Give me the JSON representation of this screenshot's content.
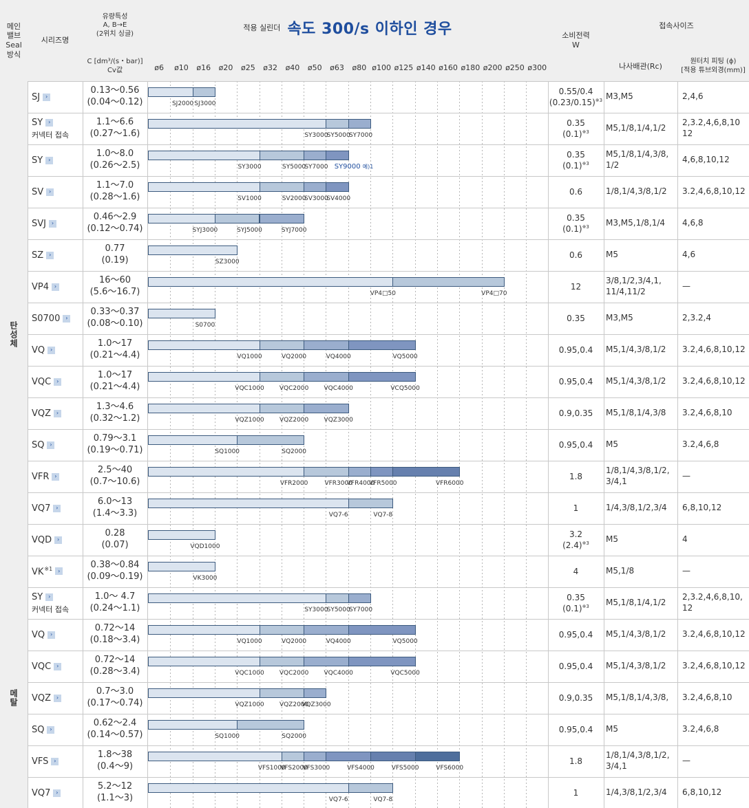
{
  "header": {
    "main_valve_seal": "메인\n밸브\nSeal\n방식",
    "series_name": "시리즈명",
    "flow_characteristic": "유량특성\nA, B→E\n(2위치 싱글)",
    "flow_unit": "C [dm³/(s・bar)]\nCv값",
    "cylinder_prefix": "적용 실린더",
    "cylinder_title": "속도 300/s 이하인 경우",
    "power": "소비전력\nW",
    "connection_size": "접속사이즈",
    "pipe_thread": "나사배관(Rc)",
    "tube_fitting": "원터치 피팅 (ϕ)\n[적용 튜브외경(mm)]"
  },
  "bore_ticks": [
    "ø6",
    "ø10",
    "ø16",
    "ø20",
    "ø25",
    "ø32",
    "ø40",
    "ø50",
    "ø63",
    "ø80",
    "ø100",
    "ø125",
    "ø140",
    "ø160",
    "ø180",
    "ø200",
    "ø250",
    "ø300"
  ],
  "sections": [
    {
      "label": "탄성체",
      "rows": 16
    },
    {
      "label": "메탈",
      "rows": 7
    }
  ],
  "rows": [
    {
      "series": "SJ",
      "note": "",
      "sub": "",
      "flow_c": "0.13〜0.56",
      "flow_cv": "(0.04〜0.12)",
      "power": "0.55/0.4",
      "power_sub": "(0.23/0.15)",
      "power_mark": "※3",
      "pipe": "M3,M5",
      "tube": "2,4,6",
      "segments": [
        {
          "label": "SJ2000",
          "end": 2
        },
        {
          "label": "SJ3000",
          "end": 3
        }
      ]
    },
    {
      "series": "SY",
      "note": "",
      "sub": "커넥터 접속",
      "flow_c": "1.1〜6.6",
      "flow_cv": "(0.27〜1.6)",
      "power": "0.35",
      "power_sub": "(0.1)",
      "power_mark": "※3",
      "pipe": "M5,1/8,1/4,1/2",
      "tube": "2,3.2,4,6,8,10\n12",
      "segments": [
        {
          "label": "SY3000",
          "end": 8
        },
        {
          "label": "SY5000",
          "end": 9
        },
        {
          "label": "SY7000",
          "end": 10
        }
      ]
    },
    {
      "series": "SY",
      "note": "",
      "sub": "",
      "flow_c": "1.0〜8.0",
      "flow_cv": "(0.26〜2.5)",
      "power": "0.35",
      "power_sub": "(0.1)",
      "power_mark": "※3",
      "pipe": "M5,1/8,1/4,3/8,\n1/2",
      "tube": "4,6,8,10,12",
      "segments": [
        {
          "label": "SY3000",
          "end": 5
        },
        {
          "label": "SY5000",
          "end": 7
        },
        {
          "label": "SY7000",
          "end": 8
        },
        {
          "label": "",
          "end": 9
        }
      ],
      "extra": "SY9000",
      "extra_note": "예)1"
    },
    {
      "series": "SV",
      "note": "",
      "sub": "",
      "flow_c": "1.1〜7.0",
      "flow_cv": "(0.28〜1.6)",
      "power": "0.6",
      "power_sub": "",
      "power_mark": "",
      "pipe": "1/8,1/4,3/8,1/2",
      "tube": "3.2,4,6,8,10,12",
      "segments": [
        {
          "label": "SV1000",
          "end": 5
        },
        {
          "label": "SV2000",
          "end": 7
        },
        {
          "label": "SV3000",
          "end": 8
        },
        {
          "label": "SV4000",
          "end": 9
        }
      ]
    },
    {
      "series": "SVJ",
      "note": "",
      "sub": "",
      "flow_c": "0.46〜2.9",
      "flow_cv": "(0.12〜0.74)",
      "power": "0.35",
      "power_sub": "(0.1)",
      "power_mark": "※3",
      "pipe": "M3,M5,1/8,1/4",
      "tube": "4,6,8",
      "segments": [
        {
          "label": "SYJ3000",
          "end": 3
        },
        {
          "label": "SYJ5000",
          "end": 5
        },
        {
          "label": "SYJ7000",
          "end": 7
        }
      ]
    },
    {
      "series": "SZ",
      "note": "",
      "sub": "",
      "flow_c": "0.77",
      "flow_cv": "(0.19)",
      "power": "0.6",
      "power_sub": "",
      "power_mark": "",
      "pipe": "M5",
      "tube": "4,6",
      "segments": [
        {
          "label": "SZ3000",
          "end": 4
        }
      ]
    },
    {
      "series": "VP4",
      "note": "",
      "sub": "",
      "flow_c": "16〜60",
      "flow_cv": "(5.6〜16.7)",
      "power": "12",
      "power_sub": "",
      "power_mark": "",
      "pipe": "3/8,1/2,3/4,1,\n11/4,11/2",
      "tube": "—",
      "segments": [
        {
          "label": "VP4□50",
          "end": 11
        },
        {
          "label": "VP4□70",
          "end": 16
        }
      ]
    },
    {
      "series": "S0700",
      "note": "",
      "sub": "",
      "flow_c": "0.33〜0.37",
      "flow_cv": "(0.08〜0.10)",
      "power": "0.35",
      "power_sub": "",
      "power_mark": "",
      "pipe": "M3,M5",
      "tube": "2,3.2,4",
      "segments": [
        {
          "label": "S0700",
          "end": 3
        }
      ]
    },
    {
      "series": "VQ",
      "note": "",
      "sub": "",
      "flow_c": "1.0〜17",
      "flow_cv": "(0.21〜4.4)",
      "power": "0.95,0.4",
      "power_sub": "",
      "power_mark": "",
      "pipe": "M5,1/4,3/8,1/2",
      "tube": "3.2,4,6,8,10,12",
      "segments": [
        {
          "label": "VQ1000",
          "end": 5
        },
        {
          "label": "VQ2000",
          "end": 7
        },
        {
          "label": "VQ4000",
          "end": 9
        },
        {
          "label": "VQ5000",
          "end": 12
        }
      ]
    },
    {
      "series": "VQC",
      "note": "",
      "sub": "",
      "flow_c": "1.0〜17",
      "flow_cv": "(0.21〜4.4)",
      "power": "0.95,0.4",
      "power_sub": "",
      "power_mark": "",
      "pipe": "M5,1/4,3/8,1/2",
      "tube": "3.2,4,6,8,10,12",
      "segments": [
        {
          "label": "VQC1000",
          "end": 5
        },
        {
          "label": "VQC2000",
          "end": 7
        },
        {
          "label": "VQC4000",
          "end": 9
        },
        {
          "label": "VCQ5000",
          "end": 12
        }
      ]
    },
    {
      "series": "VQZ",
      "note": "",
      "sub": "",
      "flow_c": "1.3〜4.6",
      "flow_cv": "(0.32〜1.2)",
      "power": "0.9,0.35",
      "power_sub": "",
      "power_mark": "",
      "pipe": "M5,1/8,1/4,3/8",
      "tube": "3.2,4,6,8,10",
      "segments": [
        {
          "label": "VQZ1000",
          "end": 5
        },
        {
          "label": "VQZ2000",
          "end": 7
        },
        {
          "label": "VQZ3000",
          "end": 9
        }
      ]
    },
    {
      "series": "SQ",
      "note": "",
      "sub": "",
      "flow_c": "0.79〜3.1",
      "flow_cv": "(0.19〜0.71)",
      "power": "0.95,0.4",
      "power_sub": "",
      "power_mark": "",
      "pipe": "M5",
      "tube": "3.2,4,6,8",
      "segments": [
        {
          "label": "SQ1000",
          "end": 4
        },
        {
          "label": "SQ2000",
          "end": 7
        }
      ]
    },
    {
      "series": "VFR",
      "note": "",
      "sub": "",
      "flow_c": "2.5〜40",
      "flow_cv": "(0.7〜10.6)",
      "power": "1.8",
      "power_sub": "",
      "power_mark": "",
      "pipe": "1/8,1/4,3/8,1/2,\n3/4,1",
      "tube": "—",
      "segments": [
        {
          "label": "VFR2000",
          "end": 7
        },
        {
          "label": "VFR3000",
          "end": 9
        },
        {
          "label": "VFR4000",
          "end": 10
        },
        {
          "label": "VFR5000",
          "end": 11
        },
        {
          "label": "VFR6000",
          "end": 14
        }
      ]
    },
    {
      "series": "VQ7",
      "note": "",
      "sub": "",
      "flow_c": "6.0〜13",
      "flow_cv": "(1.4〜3.3)",
      "power": "1",
      "power_sub": "",
      "power_mark": "",
      "pipe": "1/4,3/8,1/2,3/4",
      "tube": "6,8,10,12",
      "segments": [
        {
          "label": "VQ7-6",
          "end": 9
        },
        {
          "label": "VQ7-8",
          "end": 11
        }
      ]
    },
    {
      "series": "VQD",
      "note": "",
      "sub": "",
      "flow_c": "0.28",
      "flow_cv": "(0.07)",
      "power": "3.2",
      "power_sub": "(2.4)",
      "power_mark": "※3",
      "pipe": "M5",
      "tube": "4",
      "segments": [
        {
          "label": "VQD1000",
          "end": 3
        }
      ]
    },
    {
      "series": "VK",
      "note": "※1",
      "sub": "",
      "flow_c": "0.38〜0.84",
      "flow_cv": "(0.09〜0.19)",
      "power": "4",
      "power_sub": "",
      "power_mark": "",
      "pipe": "M5,1/8",
      "tube": "—",
      "segments": [
        {
          "label": "VK3000",
          "end": 3
        }
      ]
    },
    {
      "series": "SY",
      "note": "",
      "sub": "커넥터 접속",
      "flow_c": "1.0〜 4.7",
      "flow_cv": "(0.24〜1.1)",
      "power": "0.35",
      "power_sub": "(0.1)",
      "power_mark": "※3",
      "pipe": "M5,1/8,1/4,1/2",
      "tube": "2,3.2,4,6,8,10,\n12",
      "segments": [
        {
          "label": "SY3000",
          "end": 8
        },
        {
          "label": "SY5000",
          "end": 9
        },
        {
          "label": "SY7000",
          "end": 10
        }
      ]
    },
    {
      "series": "VQ",
      "note": "",
      "sub": "",
      "flow_c": "0.72〜14",
      "flow_cv": "(0.18〜3.4)",
      "power": "0.95,0.4",
      "power_sub": "",
      "power_mark": "",
      "pipe": "M5,1/4,3/8,1/2",
      "tube": "3.2,4,6,8,10,12",
      "segments": [
        {
          "label": "VQ1000",
          "end": 5
        },
        {
          "label": "VQ2000",
          "end": 7
        },
        {
          "label": "VQ4000",
          "end": 9
        },
        {
          "label": "VQ5000",
          "end": 12
        }
      ]
    },
    {
      "series": "VQC",
      "note": "",
      "sub": "",
      "flow_c": "0.72〜14",
      "flow_cv": "(0.28〜3.4)",
      "power": "0.95,0.4",
      "power_sub": "",
      "power_mark": "",
      "pipe": "M5,1/4,3/8,1/2",
      "tube": "3.2,4,6,8,10,12",
      "segments": [
        {
          "label": "VQC1000",
          "end": 5
        },
        {
          "label": "VQC2000",
          "end": 7
        },
        {
          "label": "VQC4000",
          "end": 9
        },
        {
          "label": "VQC5000",
          "end": 12
        }
      ]
    },
    {
      "series": "VQZ",
      "note": "",
      "sub": "",
      "flow_c": "0.7〜3.0",
      "flow_cv": "(0.17〜0.74)",
      "power": "0.9,0.35",
      "power_sub": "",
      "power_mark": "",
      "pipe": "M5,1/8,1/4,3/8,",
      "tube": "3.2,4,6,8,10",
      "segments": [
        {
          "label": "VQZ1000",
          "end": 5
        },
        {
          "label": "VQZ2000",
          "end": 7
        },
        {
          "label": "VQZ3000",
          "end": 8
        }
      ]
    },
    {
      "series": "SQ",
      "note": "",
      "sub": "",
      "flow_c": "0.62〜2.4",
      "flow_cv": "(0.14〜0.57)",
      "power": "0.95,0.4",
      "power_sub": "",
      "power_mark": "",
      "pipe": "M5",
      "tube": "3.2,4,6,8",
      "segments": [
        {
          "label": "SQ1000",
          "end": 4
        },
        {
          "label": "SQ2000",
          "end": 7
        }
      ]
    },
    {
      "series": "VFS",
      "note": "",
      "sub": "",
      "flow_c": "1.8〜38",
      "flow_cv": "(0.4〜9)",
      "power": "1.8",
      "power_sub": "",
      "power_mark": "",
      "pipe": "1/8,1/4,3/8,1/2,\n3/4,1",
      "tube": "—",
      "segments": [
        {
          "label": "VFS1000",
          "end": 6
        },
        {
          "label": "VFS2000",
          "end": 7
        },
        {
          "label": "VFS3000",
          "end": 8
        },
        {
          "label": "VFS4000",
          "end": 10
        },
        {
          "label": "VFS5000",
          "end": 12
        },
        {
          "label": "VFS6000",
          "end": 14
        }
      ]
    },
    {
      "series": "VQ7",
      "note": "",
      "sub": "",
      "flow_c": "5.2〜12",
      "flow_cv": "(1.1〜3)",
      "power": "1",
      "power_sub": "",
      "power_mark": "",
      "pipe": "1/4,3/8,1/2,3/4",
      "tube": "6,8,10,12",
      "segments": [
        {
          "label": "VQ7-6",
          "end": 9
        },
        {
          "label": "VQ7-8",
          "end": 11
        }
      ]
    }
  ],
  "colors": {
    "header_bg": "#efefef",
    "border": "#c8c8c8",
    "title_blue": "#1f4e9e",
    "bar_border": "#3c5a7e",
    "bar_shades": [
      "#dbe4ef",
      "#b7c8db",
      "#9aaece",
      "#7f95c0",
      "#6680ae",
      "#4e6e9c"
    ]
  },
  "icons": {
    "series_link": "chevron-right-icon"
  }
}
